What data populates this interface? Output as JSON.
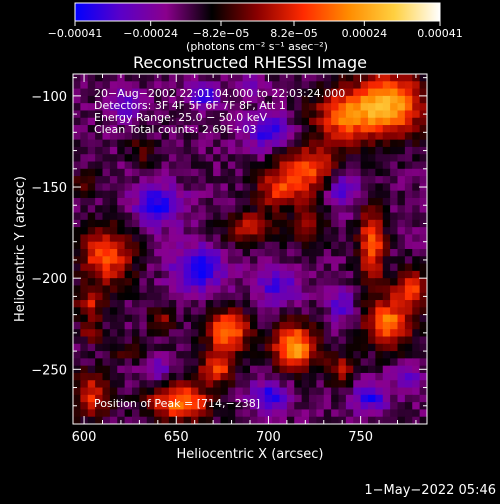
{
  "chart_data": {
    "type": "heatmap",
    "title": "Reconstructed RHESSI Image",
    "xlabel": "Heliocentric X (arcsec)",
    "ylabel": "Heliocentric Y (arcsec)",
    "xlim": [
      594,
      786
    ],
    "ylim": [
      -280,
      -88
    ],
    "x_ticks": [
      600,
      650,
      700,
      750
    ],
    "x_tick_labels": [
      "600",
      "650",
      "700",
      "750"
    ],
    "y_ticks": [
      -100,
      -150,
      -200,
      -250
    ],
    "y_tick_labels": [
      "−100",
      "−150",
      "−200",
      "−250"
    ],
    "colorbar": {
      "range": [
        -0.00041,
        0.00041
      ],
      "tick_values": [
        -0.00041,
        -0.00024,
        -8.2e-05,
        8.2e-05,
        0.00024,
        0.00041
      ],
      "tick_labels": [
        "−0.00041",
        "−0.00024",
        "−8.2e−05",
        "8.2e−05",
        "0.00024",
        "0.00041"
      ],
      "unit_label": "(photons cm⁻² s⁻¹ asec⁻²)",
      "colormap": [
        "#0000ff",
        "#5a00c8",
        "#8a008c",
        "#000000",
        "#8b0000",
        "#ff2a00",
        "#ff8c00",
        "#ffd040",
        "#ffffff"
      ]
    },
    "annotations": [
      "20−Aug−2002 22:01:04.000 to 22:03:24.000",
      "Detectors: 3F 4F 5F 6F 7F 8F, Att 1",
      "Energy Range: 25.0 − 50.0 keV",
      "Clean    Total counts: 2.69E+03",
      "Position of Peak = [714,−238]"
    ],
    "peak": [
      714,
      -238
    ],
    "grid": false,
    "sources": [
      {
        "x": 765,
        "y": -105,
        "sx": 14,
        "sy": 12,
        "v": 0.00041
      },
      {
        "x": 740,
        "y": -112,
        "sx": 12,
        "sy": 10,
        "v": 0.00026
      },
      {
        "x": 722,
        "y": -140,
        "sx": 12,
        "sy": 9,
        "v": 0.00028
      },
      {
        "x": 706,
        "y": -152,
        "sx": 9,
        "sy": 7,
        "v": 0.00024
      },
      {
        "x": 690,
        "y": -172,
        "sx": 10,
        "sy": 6,
        "v": 0.0002
      },
      {
        "x": 722,
        "y": -172,
        "sx": 6,
        "sy": 8,
        "v": 0.00018
      },
      {
        "x": 756,
        "y": -182,
        "sx": 5,
        "sy": 14,
        "v": 0.00032
      },
      {
        "x": 777,
        "y": -206,
        "sx": 7,
        "sy": 7,
        "v": 0.00026
      },
      {
        "x": 765,
        "y": -225,
        "sx": 9,
        "sy": 9,
        "v": 0.00034
      },
      {
        "x": 740,
        "y": -250,
        "sx": 6,
        "sy": 6,
        "v": 0.00018
      },
      {
        "x": 714,
        "y": -238,
        "sx": 8,
        "sy": 9,
        "v": 0.00041
      },
      {
        "x": 678,
        "y": -229,
        "sx": 8,
        "sy": 8,
        "v": 0.00036
      },
      {
        "x": 672,
        "y": -250,
        "sx": 7,
        "sy": 6,
        "v": 0.00026
      },
      {
        "x": 652,
        "y": -268,
        "sx": 12,
        "sy": 7,
        "v": 0.00034
      },
      {
        "x": 604,
        "y": -264,
        "sx": 7,
        "sy": 9,
        "v": 0.00024
      },
      {
        "x": 604,
        "y": -230,
        "sx": 4,
        "sy": 4,
        "v": 0.00018
      },
      {
        "x": 612,
        "y": -188,
        "sx": 10,
        "sy": 11,
        "v": 0.0003
      },
      {
        "x": 603,
        "y": -215,
        "sx": 6,
        "sy": 6,
        "v": 0.0002
      },
      {
        "x": 642,
        "y": -222,
        "sx": 5,
        "sy": 5,
        "v": 0.00016
      },
      {
        "x": 632,
        "y": -130,
        "sx": 5,
        "sy": 5,
        "v": 0.00014
      },
      {
        "x": 600,
        "y": -148,
        "sx": 5,
        "sy": 5,
        "v": 0.00012
      },
      {
        "x": 625,
        "y": -240,
        "sx": 8,
        "sy": 4,
        "v": 0.00012
      },
      {
        "x": 665,
        "y": -100,
        "sx": 6,
        "sy": 5,
        "v": -0.00018
      },
      {
        "x": 640,
        "y": -160,
        "sx": 9,
        "sy": 8,
        "v": -0.00022
      },
      {
        "x": 700,
        "y": -120,
        "sx": 9,
        "sy": 7,
        "v": -0.0002
      },
      {
        "x": 662,
        "y": -195,
        "sx": 10,
        "sy": 9,
        "v": -0.00024
      },
      {
        "x": 740,
        "y": -150,
        "sx": 6,
        "sy": 8,
        "v": -0.0002
      },
      {
        "x": 705,
        "y": -205,
        "sx": 8,
        "sy": 7,
        "v": -0.00018
      },
      {
        "x": 740,
        "y": -215,
        "sx": 5,
        "sy": 6,
        "v": -0.00016
      },
      {
        "x": 700,
        "y": -265,
        "sx": 8,
        "sy": 6,
        "v": -0.0002
      },
      {
        "x": 755,
        "y": -265,
        "sx": 7,
        "sy": 6,
        "v": -0.0002
      },
      {
        "x": 622,
        "y": -105,
        "sx": 7,
        "sy": 6,
        "v": -0.00016
      },
      {
        "x": 640,
        "y": -250,
        "sx": 5,
        "sy": 5,
        "v": -0.00014
      },
      {
        "x": 690,
        "y": -95,
        "sx": 5,
        "sy": 4,
        "v": -0.00014
      },
      {
        "x": 775,
        "y": -255,
        "sx": 5,
        "sy": 5,
        "v": -0.00016
      }
    ]
  },
  "footer": {
    "timestamp": "1−May−2022 05:46"
  }
}
